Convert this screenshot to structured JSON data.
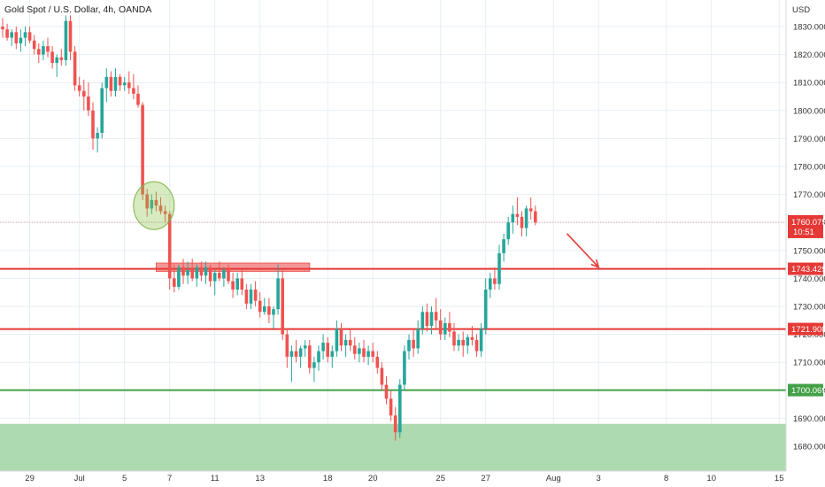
{
  "header": {
    "title": "Gold Spot / U.S. Dollar, 4h, OANDA",
    "currency": "USD"
  },
  "colors": {
    "up": "#26a69a",
    "down": "#ef5350",
    "resistance": "#e53935",
    "support": "#43a047",
    "zone_red": "#f28b8b",
    "zone_green": "#a5d6a7",
    "grid": "#e6eef4",
    "price_dotted": "#ef9a9a"
  },
  "chart_data": {
    "type": "candlestick",
    "symbol": "XAUUSD",
    "timeframe": "4h",
    "ylim": [
      1673,
      1837
    ],
    "y_ticks": [
      1680,
      1690,
      1700,
      1710,
      1720,
      1730,
      1740,
      1750,
      1760,
      1770,
      1780,
      1790,
      1800,
      1810,
      1820,
      1830
    ],
    "y_tick_labels": [
      "1680.000",
      "1690.000",
      "1700.000",
      "1710.000",
      "1720.000",
      "1730.000",
      "1740.000",
      "1750.000",
      "1760.000",
      "1770.000",
      "1780.000",
      "1790.000",
      "1800.000",
      "1810.000",
      "1820.000",
      "1830.000"
    ],
    "x_ticks": [
      "29",
      "Jul",
      "5",
      "7",
      "11",
      "13",
      "18",
      "20",
      "25",
      "27",
      "Aug",
      "3",
      "8",
      "10",
      "15"
    ],
    "x_tick_index": [
      6,
      17,
      27,
      37,
      47,
      57,
      72,
      82,
      97,
      107,
      122,
      132,
      147,
      157,
      172
    ],
    "candles": [
      [
        1830,
        1833,
        1826,
        1829
      ],
      [
        1829,
        1831,
        1825,
        1826
      ],
      [
        1826,
        1829,
        1823,
        1828
      ],
      [
        1828,
        1830,
        1822,
        1824
      ],
      [
        1824,
        1829,
        1821,
        1826
      ],
      [
        1826,
        1830,
        1823,
        1828
      ],
      [
        1828,
        1830,
        1824,
        1825
      ],
      [
        1825,
        1827,
        1820,
        1822
      ],
      [
        1822,
        1824,
        1817,
        1820
      ],
      [
        1820,
        1825,
        1818,
        1823
      ],
      [
        1823,
        1826,
        1819,
        1821
      ],
      [
        1821,
        1823,
        1815,
        1817
      ],
      [
        1817,
        1820,
        1812,
        1819
      ],
      [
        1819,
        1822,
        1816,
        1818
      ],
      [
        1818,
        1834,
        1816,
        1832
      ],
      [
        1832,
        1834,
        1818,
        1821
      ],
      [
        1821,
        1823,
        1807,
        1809
      ],
      [
        1809,
        1812,
        1805,
        1807
      ],
      [
        1807,
        1811,
        1800,
        1805
      ],
      [
        1805,
        1810,
        1798,
        1800
      ],
      [
        1800,
        1803,
        1786,
        1790
      ],
      [
        1790,
        1794,
        1785,
        1792
      ],
      [
        1792,
        1810,
        1790,
        1808
      ],
      [
        1808,
        1815,
        1803,
        1812
      ],
      [
        1812,
        1814,
        1805,
        1807
      ],
      [
        1807,
        1815,
        1805,
        1812
      ],
      [
        1812,
        1813,
        1807,
        1809
      ],
      [
        1809,
        1812,
        1807,
        1810
      ],
      [
        1810,
        1814,
        1806,
        1808
      ],
      [
        1808,
        1813,
        1804,
        1806
      ],
      [
        1806,
        1809,
        1801,
        1802
      ],
      [
        1802,
        1803,
        1768,
        1770
      ],
      [
        1770,
        1772,
        1762,
        1765
      ],
      [
        1765,
        1770,
        1763,
        1768
      ],
      [
        1768,
        1771,
        1764,
        1766
      ],
      [
        1766,
        1769,
        1763,
        1764
      ],
      [
        1764,
        1766,
        1760,
        1763
      ],
      [
        1763,
        1764,
        1736,
        1740
      ],
      [
        1740,
        1745,
        1735,
        1737
      ],
      [
        1737,
        1745,
        1736,
        1744
      ],
      [
        1744,
        1747,
        1738,
        1741
      ],
      [
        1741,
        1746,
        1738,
        1743
      ],
      [
        1743,
        1747,
        1739,
        1740
      ],
      [
        1740,
        1745,
        1737,
        1744
      ],
      [
        1744,
        1746,
        1739,
        1741
      ],
      [
        1741,
        1746,
        1738,
        1744
      ],
      [
        1744,
        1745,
        1737,
        1739
      ],
      [
        1739,
        1743,
        1734,
        1742
      ],
      [
        1742,
        1746,
        1739,
        1740
      ],
      [
        1740,
        1744,
        1737,
        1743
      ],
      [
        1743,
        1745,
        1738,
        1739
      ],
      [
        1739,
        1742,
        1733,
        1736
      ],
      [
        1736,
        1742,
        1734,
        1740
      ],
      [
        1740,
        1743,
        1734,
        1736
      ],
      [
        1736,
        1738,
        1729,
        1731
      ],
      [
        1731,
        1738,
        1729,
        1736
      ],
      [
        1736,
        1739,
        1730,
        1732
      ],
      [
        1732,
        1735,
        1726,
        1728
      ],
      [
        1728,
        1733,
        1727,
        1730
      ],
      [
        1730,
        1733,
        1724,
        1727
      ],
      [
        1727,
        1730,
        1722,
        1729
      ],
      [
        1729,
        1745,
        1727,
        1740
      ],
      [
        1740,
        1743,
        1718,
        1720
      ],
      [
        1720,
        1722,
        1708,
        1712
      ],
      [
        1712,
        1716,
        1703,
        1714
      ],
      [
        1714,
        1718,
        1710,
        1712
      ],
      [
        1712,
        1716,
        1708,
        1715
      ],
      [
        1715,
        1718,
        1712,
        1716
      ],
      [
        1716,
        1718,
        1706,
        1708
      ],
      [
        1708,
        1712,
        1703,
        1710
      ],
      [
        1710,
        1716,
        1707,
        1714
      ],
      [
        1714,
        1720,
        1711,
        1717
      ],
      [
        1717,
        1719,
        1710,
        1712
      ],
      [
        1712,
        1716,
        1708,
        1714
      ],
      [
        1714,
        1725,
        1712,
        1722
      ],
      [
        1722,
        1724,
        1714,
        1716
      ],
      [
        1716,
        1720,
        1712,
        1718
      ],
      [
        1718,
        1722,
        1714,
        1716
      ],
      [
        1716,
        1719,
        1711,
        1713
      ],
      [
        1713,
        1717,
        1710,
        1715
      ],
      [
        1715,
        1718,
        1710,
        1712
      ],
      [
        1712,
        1716,
        1709,
        1714
      ],
      [
        1714,
        1717,
        1710,
        1712
      ],
      [
        1712,
        1714,
        1706,
        1708
      ],
      [
        1708,
        1710,
        1700,
        1702
      ],
      [
        1702,
        1705,
        1695,
        1697
      ],
      [
        1697,
        1700,
        1689,
        1691
      ],
      [
        1691,
        1694,
        1682,
        1685
      ],
      [
        1685,
        1704,
        1683,
        1702
      ],
      [
        1702,
        1716,
        1700,
        1714
      ],
      [
        1714,
        1720,
        1711,
        1718
      ],
      [
        1718,
        1722,
        1712,
        1715
      ],
      [
        1715,
        1725,
        1713,
        1722
      ],
      [
        1722,
        1730,
        1720,
        1728
      ],
      [
        1728,
        1731,
        1721,
        1723
      ],
      [
        1723,
        1730,
        1720,
        1728
      ],
      [
        1728,
        1733,
        1722,
        1725
      ],
      [
        1725,
        1729,
        1718,
        1720
      ],
      [
        1720,
        1726,
        1718,
        1724
      ],
      [
        1724,
        1728,
        1719,
        1721
      ],
      [
        1721,
        1724,
        1714,
        1716
      ],
      [
        1716,
        1720,
        1714,
        1718
      ],
      [
        1718,
        1721,
        1712,
        1716
      ],
      [
        1716,
        1720,
        1713,
        1719
      ],
      [
        1719,
        1723,
        1716,
        1718
      ],
      [
        1718,
        1720,
        1712,
        1714
      ],
      [
        1714,
        1724,
        1712,
        1722
      ],
      [
        1722,
        1740,
        1720,
        1736
      ],
      [
        1736,
        1742,
        1733,
        1740
      ],
      [
        1740,
        1744,
        1736,
        1738
      ],
      [
        1738,
        1752,
        1736,
        1749
      ],
      [
        1749,
        1756,
        1746,
        1754
      ],
      [
        1754,
        1762,
        1752,
        1760
      ],
      [
        1760,
        1766,
        1756,
        1763
      ],
      [
        1763,
        1769,
        1759,
        1762
      ],
      [
        1762,
        1764,
        1755,
        1758
      ],
      [
        1758,
        1766,
        1755,
        1765
      ],
      [
        1765,
        1769,
        1761,
        1764
      ],
      [
        1764,
        1766,
        1759,
        1760
      ]
    ],
    "levels": [
      {
        "type": "resistance",
        "value": 1743.429,
        "label": "1743.429"
      },
      {
        "type": "support",
        "value": 1721.908,
        "label": "1721.908"
      },
      {
        "type": "support",
        "value": 1700.069,
        "label": "1700.069"
      }
    ],
    "current_price": {
      "value": 1760.075,
      "label": "1760.075",
      "countdown": "10:51"
    },
    "zones": [
      {
        "color": "red",
        "from_index": 34,
        "to_index": 68,
        "y_low": 1742.5,
        "y_high": 1745.5
      },
      {
        "color": "green",
        "y_low": 1673,
        "y_high": 1688
      }
    ],
    "annotations": [
      {
        "type": "circle",
        "center_index": 33.5,
        "center_y": 1766
      },
      {
        "type": "arrow",
        "from_index": 125,
        "from_y": 1756,
        "to_index": 132,
        "to_y": 1744
      }
    ]
  }
}
